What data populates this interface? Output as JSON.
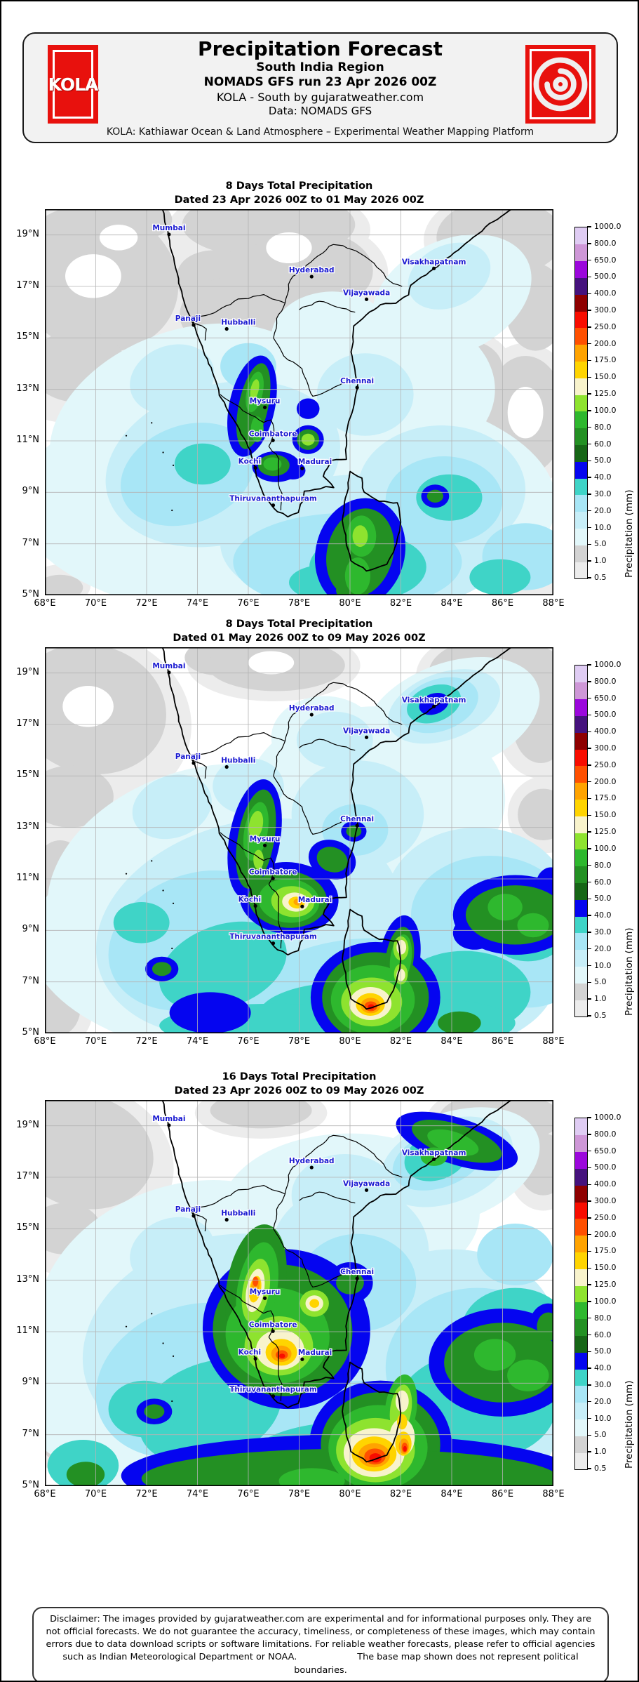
{
  "header": {
    "title": "Precipitation Forecast",
    "region": "South India Region",
    "run_line": "NOMADS GFS run 23 Apr 2026 00Z",
    "product_line": "KOLA - South by gujaratweather.com",
    "data_line": "Data: NOMADS GFS",
    "tagline": "KOLA: Kathiawar Ocean & Land Atmosphere – Experimental Weather Mapping Platform",
    "logo_text": "KOLA",
    "logo_color": "#e8110d",
    "cyclone_icon": "cyclone-spiral"
  },
  "panels": [
    {
      "title": "8 Days Total Precipitation",
      "subtitle": "Dated 23 Apr 2026 00Z to 01 May 2026 00Z"
    },
    {
      "title": "8 Days Total Precipitation",
      "subtitle": "Dated 01 May 2026 00Z to 09 May 2026 00Z"
    },
    {
      "title": "16 Days Total Precipitation",
      "subtitle": "Dated 23 Apr 2026 00Z to 09 May 2026 00Z"
    }
  ],
  "map": {
    "lon_range": [
      68,
      88
    ],
    "lat_range": [
      5,
      20
    ],
    "x_ticks": [
      "68°E",
      "70°E",
      "72°E",
      "74°E",
      "76°E",
      "78°E",
      "80°E",
      "82°E",
      "84°E",
      "86°E",
      "88°E"
    ],
    "y_ticks": [
      "19°N",
      "17°N",
      "15°N",
      "13°N",
      "11°N",
      "9°N",
      "7°N",
      "5°N"
    ],
    "city_label_color": "#1a1ad1",
    "cities": [
      {
        "name": "Mumbai",
        "lon": 72.88,
        "lat": 19.02
      },
      {
        "name": "Hyderabad",
        "lon": 78.49,
        "lat": 17.38
      },
      {
        "name": "Vijayawada",
        "lon": 80.65,
        "lat": 16.5
      },
      {
        "name": "Visakhapatnam",
        "lon": 83.3,
        "lat": 17.7
      },
      {
        "name": "Panaji",
        "lon": 73.85,
        "lat": 15.5,
        "anchor": "end",
        "dx": 10
      },
      {
        "name": "Hubballi",
        "lon": 75.15,
        "lat": 15.35,
        "anchor": "start",
        "dx": -8
      },
      {
        "name": "Chennai",
        "lon": 80.28,
        "lat": 13.07
      },
      {
        "name": "Mysuru",
        "lon": 76.65,
        "lat": 12.3
      },
      {
        "name": "Coimbatore",
        "lon": 76.97,
        "lat": 11.02
      },
      {
        "name": "Kochi",
        "lon": 76.28,
        "lat": 9.95,
        "anchor": "end",
        "dx": 8
      },
      {
        "name": "Madurai",
        "lon": 78.12,
        "lat": 9.93,
        "anchor": "start",
        "dx": -6
      },
      {
        "name": "Thiruvananthapuram",
        "lon": 76.98,
        "lat": 8.5
      }
    ]
  },
  "colorbar": {
    "label": "Precipitation (mm)",
    "ticks": [
      "0.5",
      "1.0",
      "5.0",
      "10.0",
      "20.0",
      "30.0",
      "40.0",
      "50.0",
      "60.0",
      "80.0",
      "100.0",
      "125.0",
      "150.0",
      "175.0",
      "200.0",
      "250.0",
      "300.0",
      "400.0",
      "500.0",
      "650.0",
      "800.0",
      "1000.0"
    ],
    "colors": [
      "#ececec",
      "#d3d3d3",
      "#e2f7fa",
      "#c7eef8",
      "#a8e6f6",
      "#3fd4c7",
      "#0505f0",
      "#166616",
      "#239023",
      "#2eb82e",
      "#8ee32f",
      "#f8f3cc",
      "#ffd400",
      "#ffa300",
      "#ff5000",
      "#f80d00",
      "#8e0000",
      "#45127d",
      "#9b07dc",
      "#ce97d7",
      "#dfccf3"
    ]
  },
  "disclaimer": {
    "text": "Disclaimer: The images provided by gujaratweather.com are experimental and for informational purposes only. They are not official forecasts. We do not guarantee the accuracy, timeliness, or completeness of these images, which may contain errors due to data download scripts or software limitations. For reliable weather forecasts, please refer to official agencies such as Indian Meteorological Department or NOAA.",
    "note": "The base map shown does not represent political boundaries."
  }
}
